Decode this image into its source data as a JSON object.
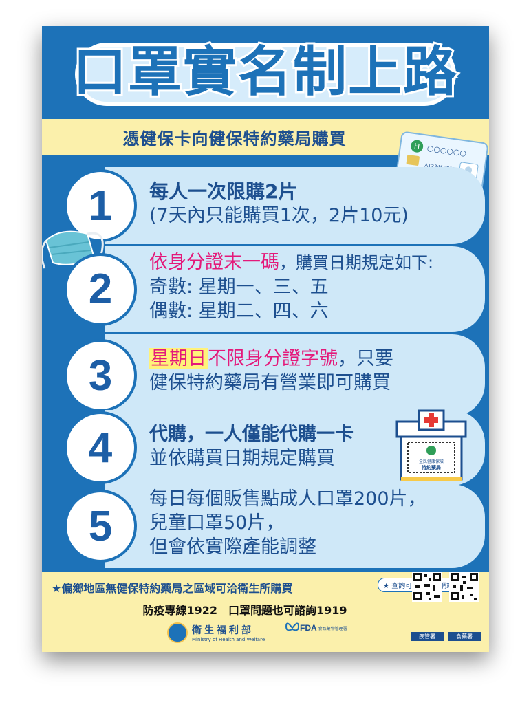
{
  "title": "口罩實名制上路",
  "subtitle": "憑健保卡向健保特約藥局購買",
  "card": {
    "circles": "○○○○○○",
    "id_text": "A123456789",
    "date_text": "○○○/○○/○○"
  },
  "rules": [
    {
      "number": "1",
      "line1": "每人一次限購2片",
      "line2": "(7天內只能購買1次，2片10元)"
    },
    {
      "number": "2",
      "line1_red": "依身分證末一碼",
      "line1_rest": "，購買日期規定如下:",
      "line2": "奇數: 星期一、三、五",
      "line3": "偶數: 星期二、四、六"
    },
    {
      "number": "3",
      "line1_hl": "星期日",
      "line1_red": "不限身分證字號",
      "line1_rest": "，只要",
      "line2": "健保特約藥局有營業即可購買"
    },
    {
      "number": "4",
      "line1": "代購，一人僅能代購一卡",
      "line2": "並依購買日期規定購買"
    },
    {
      "number": "5",
      "line1": "每日每個販售點成人口罩200片，",
      "line2": "兒童口罩50片，",
      "line3": "但會依實際產能調整"
    }
  ],
  "pharmacy_sign": {
    "line1": "全民健康保險",
    "line2": "特約藥局"
  },
  "footer": {
    "note": "★偏鄉地區無健保特約藥局之區域可洽衛生所購買",
    "tag": "★ 查詢可上食藥署網站查詢",
    "hotline": "防疫專線1922　口罩問題也可諮詢1919",
    "mohw_cn": "衛生福利部",
    "mohw_en": "Ministry of Health and Welfare",
    "fda_mark": "FDA",
    "fda_cn": "食品藥物管理署",
    "qr_labels": [
      "疾管署",
      "食藥署"
    ]
  },
  "colors": {
    "background": "#1d72b8",
    "accent_red": "#e4197a",
    "band_yellow": "#fbf0ab",
    "pill": "#cfe8f8"
  }
}
